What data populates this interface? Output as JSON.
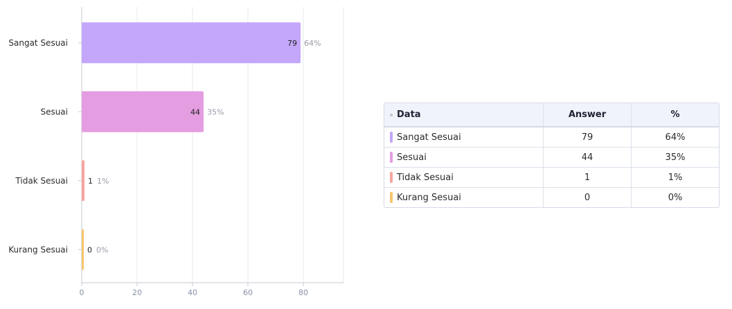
{
  "chart_data": {
    "type": "bar",
    "orientation": "horizontal",
    "categories": [
      "Sangat Sesuai",
      "Sesuai",
      "Tidak Sesuai",
      "Kurang Sesuai"
    ],
    "values": [
      79,
      44,
      1,
      0
    ],
    "percents": [
      "64%",
      "35%",
      "1%",
      "0%"
    ],
    "colors": [
      "#c4a7fb",
      "#e39de0",
      "#f8a5a0",
      "#f7c46c"
    ],
    "xlim": [
      0,
      95
    ],
    "xticks": [
      0,
      20,
      40,
      60,
      80
    ],
    "grid": true
  },
  "table": {
    "headers": [
      "Data",
      "Answer",
      "%"
    ],
    "rows": [
      {
        "label": "Sangat Sesuai",
        "answer": "79",
        "pct": "64%",
        "color": "#c4a7fb"
      },
      {
        "label": "Sesuai",
        "answer": "44",
        "pct": "35%",
        "color": "#e39de0"
      },
      {
        "label": "Tidak Sesuai",
        "answer": "1",
        "pct": "1%",
        "color": "#f8a5a0"
      },
      {
        "label": "Kurang Sesuai",
        "answer": "0",
        "pct": "0%",
        "color": "#f7c46c"
      }
    ]
  }
}
